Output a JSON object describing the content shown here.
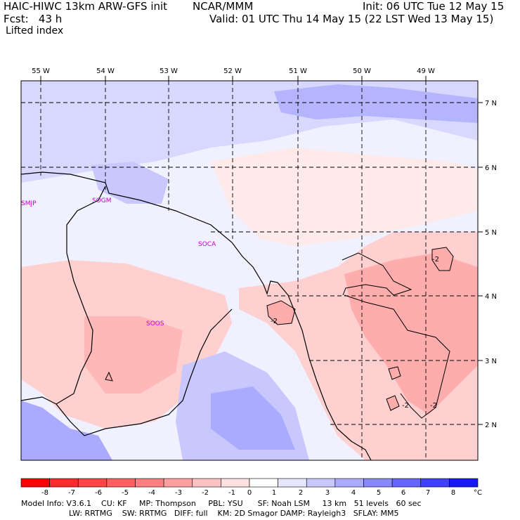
{
  "header": {
    "model_title": "HAIC-HIWC 13km ARW-GFS init",
    "institution": "NCAR/MMM",
    "init": "Init: 06 UTC Tue 12 May 15",
    "fcst": "Fcst:   43 h",
    "valid": "Valid: 01 UTC Thu 14 May 15 (22 LST Wed 13 May 15)",
    "field": "Lifted index"
  },
  "map": {
    "lon_labels": [
      "55 W",
      "54 W",
      "53 W",
      "52 W",
      "51 W",
      "50 W",
      "49 W"
    ],
    "lat_labels": [
      "7 N",
      "6 N",
      "5 N",
      "4 N",
      "3 N",
      "2 N"
    ],
    "stations": [
      "SMJP",
      "SOGM",
      "SOCA",
      "SOOS"
    ],
    "contour_labels": [
      "-2",
      "-2",
      "-2",
      "-2"
    ]
  },
  "colorbar": {
    "ticks": [
      "-8",
      "-7",
      "-6",
      "-5",
      "-4",
      "-3",
      "-2",
      "-1",
      "0",
      "1",
      "2",
      "3",
      "4",
      "5",
      "6",
      "7",
      "8"
    ],
    "unit": "°C",
    "colors": [
      "#ff0000",
      "#ff2a2a",
      "#ff4545",
      "#ff6060",
      "#ff8080",
      "#ffa0a0",
      "#ffc2c2",
      "#ffe0e0",
      "#ffffff",
      "#e6e6ff",
      "#c8c8ff",
      "#aaaaff",
      "#8888ff",
      "#6464ff",
      "#4040ff",
      "#1818ff"
    ]
  },
  "footer": {
    "line1": "Model Info: V3.6.1    CU: KF     MP: Thompson     PBL: YSU      SF: Noah LSM     13 km   51 levels   60 sec",
    "line2": "LW: RRTMG    SW: RRTMG   DIFF: full    KM: 2D Smagor DAMP: Rayleigh3   SFLAY: MM5"
  }
}
